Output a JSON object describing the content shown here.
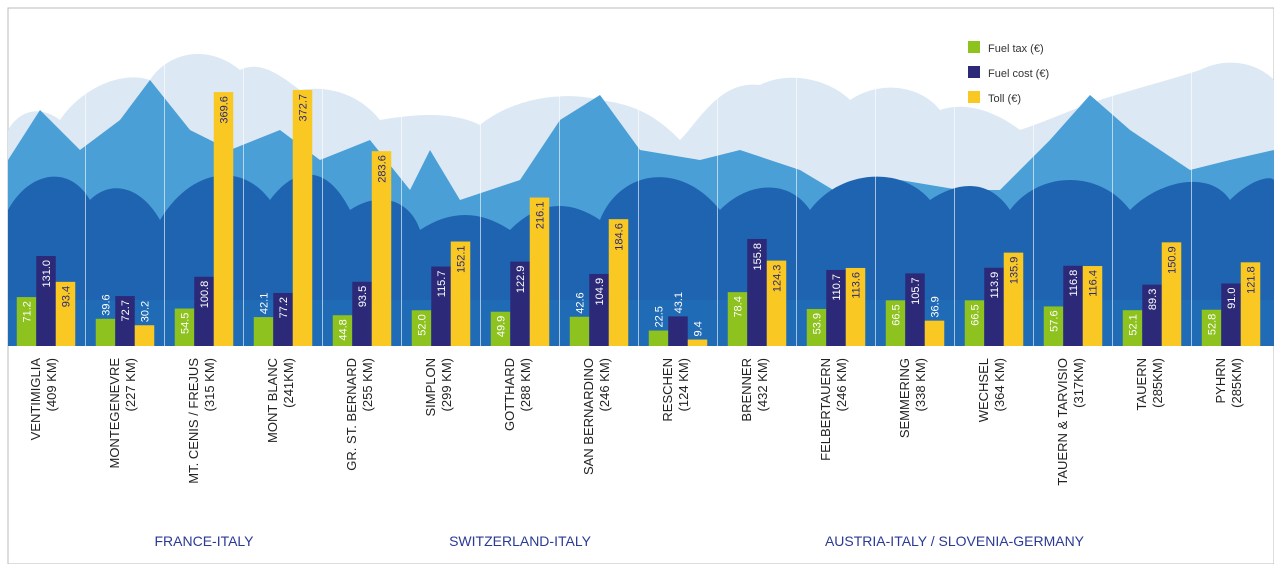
{
  "chart_data": {
    "type": "bar",
    "categories": [
      "VENTIMIGLIA\n(409 KM)",
      "MONTEGENEVRE\n(227 KM)",
      "MT. CENIS / FREJUS\n(315 KM)",
      "MONT BLANC\n(241KM)",
      "GR. ST. BERNARD\n(255 KM)",
      "SIMPLON\n(299 KM)",
      "GOTTHARD\n(288 KM)",
      "SAN BERNARDINO\n(246 KM)",
      "RESCHEN\n(124 KM)",
      "BRENNER\n(432 KM)",
      "FELBERTAUERN\n(246 KM)",
      "SEMMERING\n(338 KM)",
      "WECHSEL\n(364 KM)",
      "TAUERN & TARVISIO\n(317KM)",
      "TAUERN\n(285KM)",
      "PYHRN\n(285KM)"
    ],
    "series": [
      {
        "name": "Fuel tax (€)",
        "color": "#8dc21f",
        "values": [
          71.2,
          39.6,
          54.5,
          42.1,
          44.8,
          52.0,
          49.9,
          42.6,
          22.5,
          78.4,
          53.9,
          66.5,
          66.5,
          57.6,
          52.1,
          52.8
        ],
        "value_labels": [
          "71.2",
          "39.6",
          "54.5",
          "42.1",
          "44.8",
          "52.0",
          "49.9",
          "42.6",
          "22.5",
          "78.4",
          "53.9",
          "66.5",
          "66.5",
          "57.6",
          "52.1",
          "52.8"
        ]
      },
      {
        "name": "Fuel cost (€)",
        "color": "#2c2a78",
        "values": [
          131.0,
          72.7,
          100.8,
          77.2,
          93.5,
          115.7,
          122.9,
          104.9,
          43.1,
          155.8,
          110.7,
          105.7,
          113.9,
          116.8,
          89.3,
          91.0
        ],
        "value_labels": [
          "131.0",
          "72.7",
          "100.8",
          "77.2",
          "93.5",
          "115.7",
          "122.9",
          "104.9",
          "43.1",
          "155.8",
          "110.7",
          "105.7",
          "113.9",
          "116.8",
          "89.3",
          "91.0"
        ]
      },
      {
        "name": "Toll (€)",
        "color": "#f9c823",
        "values": [
          93.4,
          30.2,
          369.6,
          372.7,
          283.6,
          152.1,
          216.1,
          184.6,
          9.4,
          124.3,
          113.6,
          36.9,
          135.9,
          116.4,
          150.9,
          121.8
        ],
        "value_labels": [
          "93.4",
          "30.2",
          "369.6",
          "372.7",
          "283.6",
          "152.1",
          "216.1",
          "184.6",
          "9.4",
          "124.3",
          "113.6",
          "36.9",
          "135.9",
          "116.4",
          "150.9",
          "121.8"
        ]
      }
    ],
    "groups": [
      "FRANCE-ITALY",
      "SWITZERLAND-ITALY",
      "AUSTRIA-ITALY / SLOVENIA-GERMANY"
    ],
    "legend": "top-right"
  }
}
